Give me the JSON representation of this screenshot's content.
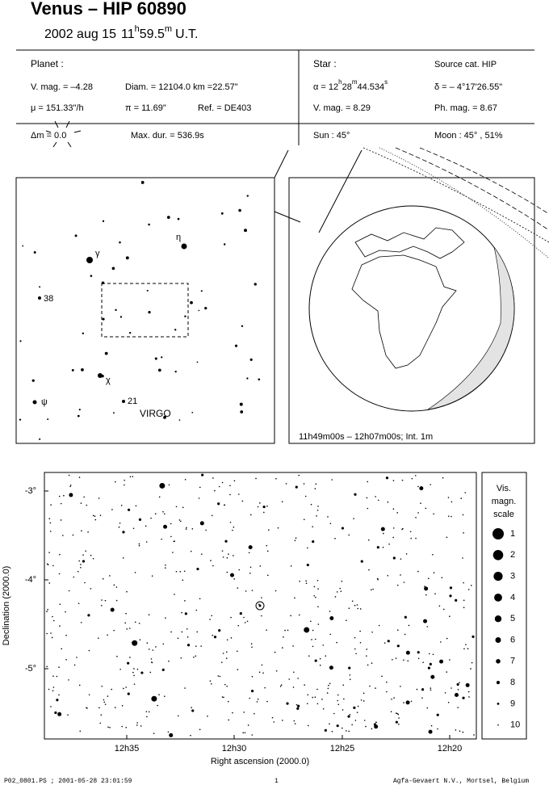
{
  "header": {
    "title": "Venus  –  HIP 60890",
    "date": "2002 aug 15",
    "hour": "11",
    "h": "h",
    "minute": "59.5",
    "m": "m",
    "ut": "U.T."
  },
  "planet": {
    "label": "Planet :",
    "vmag": "V. mag. = –4.28",
    "diam": "Diam. = 12104.0 km =22.57\"",
    "mu": "μ =  151.33\"/h",
    "pi": "π = 11.69\"",
    "ref": "Ref. = DE403",
    "dm": "Δm = 0.0",
    "maxdur": "Max. dur. = 536.9s"
  },
  "star": {
    "label": "Star :",
    "source": "Source cat.  HIP",
    "alpha": [
      "α = 12",
      "h",
      "28",
      "m",
      "44.534",
      "s"
    ],
    "delta": "δ = – 4°17'26.55\"",
    "vmag": "V. mag. =  8.29",
    "phmag": "Ph. mag. =  8.67",
    "sun": "Sun :  45°",
    "moon": "Moon :  45° , 51%"
  },
  "finder": {
    "labels": [
      "γ",
      "η",
      "38",
      "χ",
      "ψ",
      "21"
    ],
    "constellation": "VIRGO"
  },
  "globe": {
    "caption": "11h49m00s – 12h07m00s; Int.  1m"
  },
  "starchart": {
    "yticks": [
      "-3°",
      "-4°",
      "-5°"
    ],
    "xticks": [
      "12h35",
      "12h30",
      "12h25",
      "12h20"
    ],
    "xlabel": "Right ascension (2000.0)",
    "ylabel": "Declination (2000.0)",
    "scale_title": [
      "Vis.",
      "magn.",
      "scale"
    ],
    "scale": [
      1,
      2,
      3,
      4,
      5,
      6,
      7,
      8,
      9,
      10
    ]
  },
  "footer": {
    "file": "P02_0801.PS ; 2001-05-28 23:01:59",
    "page": "1",
    "company": "Agfa-Gevaert N.V., Mortsel, Belgium"
  }
}
